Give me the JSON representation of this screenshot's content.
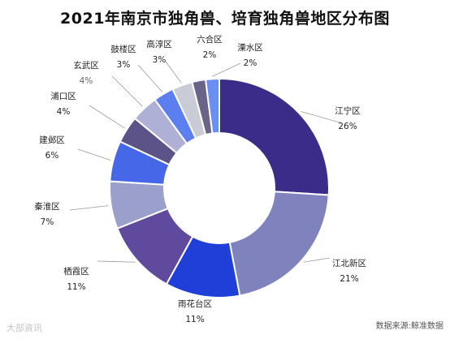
{
  "watermark": "大部资讯",
  "chart_data": {
    "type": "pie",
    "donut": true,
    "title": "2021年南京市独角兽、培育独角兽地区分布图",
    "source": "数据来源:鲸准数据",
    "slices": [
      {
        "label": "江宁区",
        "value": 26,
        "display": "26%",
        "color": "#3b2c8a"
      },
      {
        "label": "江北新区",
        "value": 21,
        "display": "21%",
        "color": "#7f82bd"
      },
      {
        "label": "雨花台区",
        "value": 11,
        "display": "11%",
        "color": "#1f3fd8"
      },
      {
        "label": "栖霞区",
        "value": 11,
        "display": "11%",
        "color": "#5f4a9e"
      },
      {
        "label": "秦淮区",
        "value": 7,
        "display": "7%",
        "color": "#9a9fcc"
      },
      {
        "label": "建邺区",
        "value": 6,
        "display": "6%",
        "color": "#4668e8"
      },
      {
        "label": "浦口区",
        "value": 4,
        "display": "4%",
        "color": "#5c5488"
      },
      {
        "label": "玄武区",
        "value": 4,
        "display": "4%",
        "color": "#aeb0d6"
      },
      {
        "label": "鼓楼区",
        "value": 3,
        "display": "3%",
        "color": "#5b7ef0"
      },
      {
        "label": "高淳区",
        "value": 3,
        "display": "3%",
        "color": "#c9cbd6"
      },
      {
        "label": "六合区",
        "value": 2,
        "display": "2%",
        "color": "#6a6488"
      },
      {
        "label": "溧水区",
        "value": 2,
        "display": "2%",
        "color": "#6a8ff2"
      }
    ]
  }
}
